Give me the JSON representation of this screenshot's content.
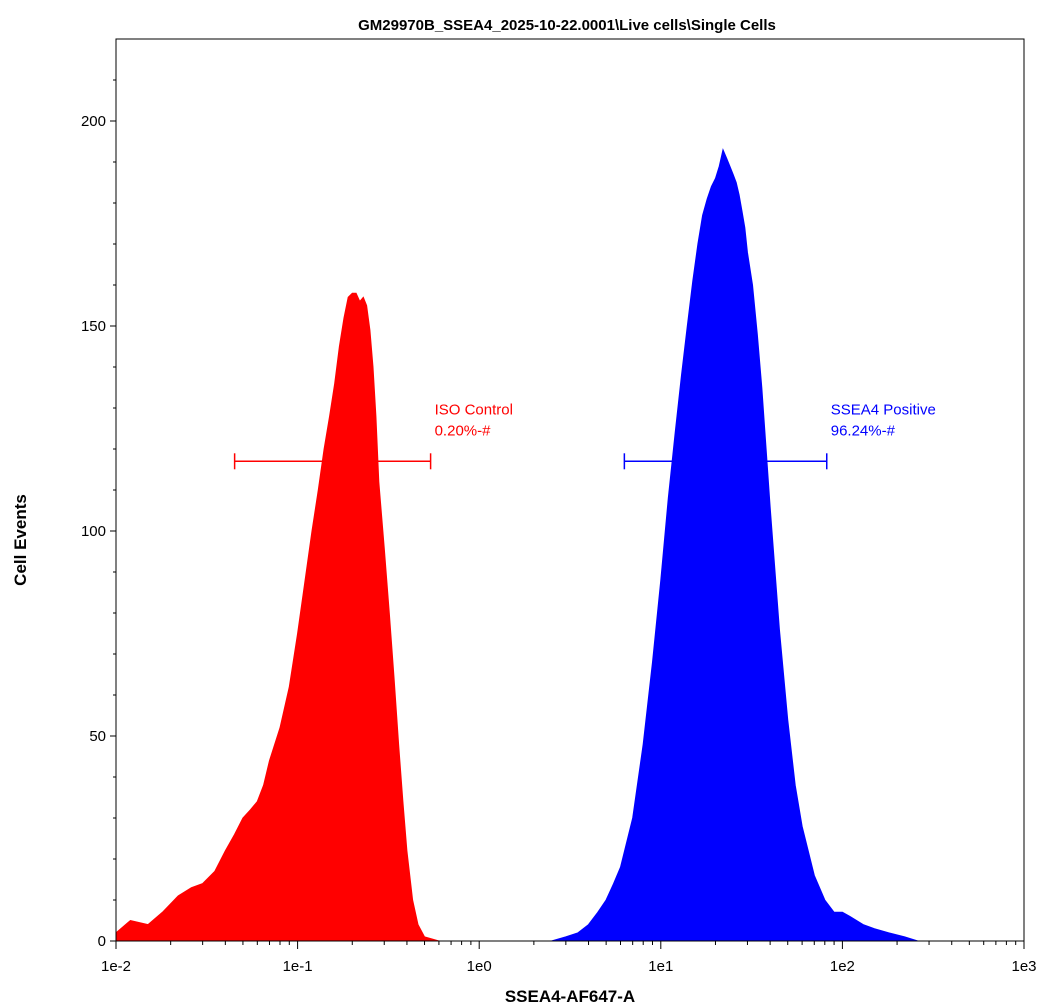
{
  "chart_data": {
    "type": "area",
    "title": "GM29970B_SSEA4_2025-10-22.0001\\Live cells\\Single Cells",
    "xlabel": "SSEA4-AF647-A",
    "ylabel": "Cell Events",
    "x_scale": "log",
    "xlim": [
      0.01,
      1000
    ],
    "ylim": [
      0,
      220
    ],
    "x_ticks": [
      {
        "value": 0.01,
        "label": "1e-2"
      },
      {
        "value": 0.1,
        "label": "1e-1"
      },
      {
        "value": 1,
        "label": "1e0"
      },
      {
        "value": 10,
        "label": "1e1"
      },
      {
        "value": 100,
        "label": "1e2"
      },
      {
        "value": 1000,
        "label": "1e3"
      }
    ],
    "y_ticks": [
      {
        "value": 0,
        "label": "0"
      },
      {
        "value": 50,
        "label": "50"
      },
      {
        "value": 100,
        "label": "100"
      },
      {
        "value": 150,
        "label": "150"
      },
      {
        "value": 200,
        "label": "200"
      }
    ],
    "grid": false,
    "series": [
      {
        "color": "#ff0000",
        "x": [
          0.01,
          0.012,
          0.015,
          0.018,
          0.022,
          0.026,
          0.03,
          0.035,
          0.04,
          0.045,
          0.05,
          0.055,
          0.06,
          0.065,
          0.07,
          0.08,
          0.09,
          0.1,
          0.11,
          0.12,
          0.13,
          0.14,
          0.15,
          0.16,
          0.17,
          0.18,
          0.19,
          0.2,
          0.21,
          0.22,
          0.23,
          0.24,
          0.25,
          0.26,
          0.27,
          0.28,
          0.3,
          0.32,
          0.34,
          0.36,
          0.38,
          0.4,
          0.43,
          0.46,
          0.5,
          0.55,
          0.6
        ],
        "y": [
          2,
          5,
          4,
          7,
          11,
          13,
          14,
          17,
          22,
          26,
          30,
          32,
          34,
          38,
          44,
          52,
          62,
          75,
          88,
          100,
          110,
          120,
          128,
          136,
          145,
          152,
          157,
          158,
          158,
          156,
          157,
          155,
          149,
          140,
          128,
          112,
          96,
          80,
          64,
          48,
          34,
          22,
          10,
          4,
          1,
          0.5,
          0
        ]
      },
      {
        "color": "#0000ff",
        "x": [
          2.5,
          3.0,
          3.5,
          4.0,
          4.5,
          5.0,
          5.5,
          6.0,
          7.0,
          8.0,
          9.0,
          10,
          11,
          12,
          13,
          14,
          15,
          16,
          17,
          18,
          19,
          20,
          21,
          22,
          23,
          24,
          25,
          26,
          27,
          28,
          29,
          30,
          32,
          34,
          36,
          38,
          40,
          45,
          50,
          55,
          60,
          70,
          80,
          90,
          100,
          110,
          130,
          150,
          180,
          220,
          260
        ],
        "y": [
          0,
          1,
          2,
          4,
          7,
          10,
          14,
          18,
          30,
          48,
          68,
          88,
          108,
          124,
          138,
          150,
          161,
          170,
          177,
          181,
          184,
          186,
          189,
          193,
          191,
          189,
          187,
          185,
          182,
          178,
          174,
          168,
          160,
          148,
          135,
          120,
          106,
          76,
          54,
          38,
          28,
          16,
          10,
          7,
          7,
          6,
          4,
          3,
          2,
          1,
          0
        ]
      }
    ],
    "gates": [
      {
        "name": "ISO Control",
        "value": "0.20%-#",
        "x_start": 0.045,
        "x_end": 0.54,
        "y": 117,
        "color": "#ff0000"
      },
      {
        "name": "SSEA4 Positive",
        "value": "96.24%-#",
        "x_start": 6.3,
        "x_end": 82,
        "y": 117,
        "color": "#0000ff"
      }
    ]
  }
}
